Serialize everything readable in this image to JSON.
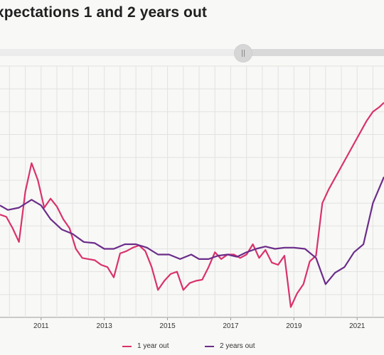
{
  "title": "xpectations 1 and 2 years out",
  "chart_data": {
    "type": "line",
    "title": "xpectations 1 and 2 years out",
    "xlim": [
      2009.7,
      2021.85
    ],
    "ylim": [
      0,
      11
    ],
    "grid": true,
    "legend_position": "bottom-center",
    "x_ticks": [
      2011,
      2013,
      2015,
      2017,
      2019,
      2021
    ],
    "series": [
      {
        "name": "1 year out",
        "color": "#d9326c",
        "x": [
          2009.7,
          2009.9,
          2010.1,
          2010.3,
          2010.5,
          2010.7,
          2010.9,
          2011.1,
          2011.3,
          2011.5,
          2011.7,
          2011.9,
          2012.1,
          2012.3,
          2012.5,
          2012.7,
          2012.9,
          2013.1,
          2013.3,
          2013.5,
          2013.7,
          2013.9,
          2014.1,
          2014.3,
          2014.5,
          2014.7,
          2014.9,
          2015.1,
          2015.3,
          2015.5,
          2015.7,
          2015.9,
          2016.1,
          2016.3,
          2016.5,
          2016.7,
          2016.9,
          2017.1,
          2017.3,
          2017.5,
          2017.7,
          2017.9,
          2018.1,
          2018.3,
          2018.5,
          2018.7,
          2018.9,
          2019.1,
          2019.3,
          2019.5,
          2019.7,
          2019.9,
          2020.1,
          2020.3,
          2020.5,
          2020.7,
          2020.9,
          2021.1,
          2021.3,
          2021.5,
          2021.7,
          2021.85
        ],
        "y": [
          4.5,
          4.4,
          3.9,
          3.3,
          5.5,
          6.75,
          6.0,
          4.8,
          5.2,
          4.85,
          4.3,
          3.9,
          3.0,
          2.6,
          2.55,
          2.5,
          2.3,
          2.2,
          1.75,
          2.8,
          2.9,
          3.05,
          3.15,
          2.9,
          2.2,
          1.2,
          1.6,
          1.9,
          2.0,
          1.2,
          1.5,
          1.6,
          1.65,
          2.2,
          2.85,
          2.55,
          2.75,
          2.75,
          2.6,
          2.75,
          3.2,
          2.6,
          2.95,
          2.4,
          2.3,
          2.7,
          0.45,
          1.05,
          1.45,
          2.45,
          2.7,
          5.0,
          5.6,
          6.1,
          6.6,
          7.1,
          7.6,
          8.1,
          8.6,
          9.0,
          9.2,
          9.4
        ]
      },
      {
        "name": "2 years out",
        "color": "#6b2d8a",
        "x": [
          2009.7,
          2009.95,
          2010.3,
          2010.7,
          2011.0,
          2011.3,
          2011.65,
          2012.0,
          2012.35,
          2012.7,
          2013.0,
          2013.3,
          2013.65,
          2014.0,
          2014.35,
          2014.7,
          2015.05,
          2015.4,
          2015.75,
          2016.0,
          2016.3,
          2016.6,
          2016.9,
          2017.2,
          2017.5,
          2017.8,
          2018.1,
          2018.4,
          2018.7,
          2019.0,
          2019.35,
          2019.7,
          2020.0,
          2020.3,
          2020.6,
          2020.9,
          2021.2,
          2021.5,
          2021.85
        ],
        "y": [
          4.9,
          4.7,
          4.8,
          5.15,
          4.9,
          4.3,
          3.85,
          3.65,
          3.3,
          3.25,
          3.0,
          3.0,
          3.2,
          3.2,
          3.05,
          2.75,
          2.75,
          2.55,
          2.75,
          2.55,
          2.55,
          2.7,
          2.75,
          2.65,
          2.85,
          3.0,
          3.1,
          3.0,
          3.05,
          3.05,
          3.0,
          2.6,
          1.45,
          1.95,
          2.2,
          2.85,
          3.2,
          5.0,
          6.15
        ]
      }
    ]
  },
  "slider": {},
  "legend": [
    {
      "label": "1 year out",
      "color": "#d9326c"
    },
    {
      "label": "2 years out",
      "color": "#6b2d8a"
    }
  ]
}
